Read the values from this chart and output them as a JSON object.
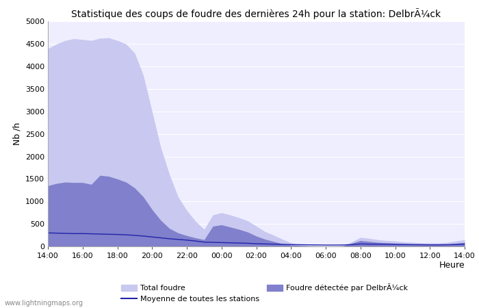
{
  "title": "Statistique des coups de foudre des dernières 24h pour la station: DelbrÃ¼ck",
  "ylabel": "Nb /h",
  "xlabel": "Heure",
  "ylim": [
    0,
    5000
  ],
  "yticks": [
    0,
    500,
    1000,
    1500,
    2000,
    2500,
    3000,
    3500,
    4000,
    4500,
    5000
  ],
  "xtick_labels": [
    "14:00",
    "16:00",
    "18:00",
    "20:00",
    "22:00",
    "00:00",
    "02:00",
    "04:00",
    "06:00",
    "08:00",
    "10:00",
    "12:00",
    "14:00"
  ],
  "color_total": "#c8c8f0",
  "color_station": "#8080cc",
  "color_mean": "#2222aa",
  "background_color": "#eeeeff",
  "grid_color": "#ffffff",
  "watermark": "www.lightningmaps.org",
  "legend_total": "Total foudre",
  "legend_station": "Foudre détectée par DelbrÃ¼ck",
  "legend_mean": "Moyenne de toutes les stations",
  "x": [
    0,
    1,
    2,
    3,
    4,
    5,
    6,
    7,
    8,
    9,
    10,
    11,
    12,
    13,
    14,
    15,
    16,
    17,
    18,
    19,
    20,
    21,
    22,
    23,
    24,
    25,
    26,
    27,
    28,
    29,
    30,
    31,
    32,
    33,
    34,
    35,
    36,
    37,
    38,
    39,
    40,
    41,
    42,
    43,
    44,
    45,
    46,
    47,
    48
  ],
  "total_foudre": [
    4400,
    4500,
    4580,
    4620,
    4600,
    4580,
    4630,
    4640,
    4580,
    4500,
    4300,
    3800,
    3000,
    2200,
    1600,
    1100,
    800,
    560,
    380,
    700,
    750,
    700,
    640,
    570,
    450,
    330,
    250,
    160,
    80,
    40,
    20,
    15,
    10,
    10,
    20,
    100,
    200,
    180,
    150,
    130,
    120,
    100,
    90,
    80,
    80,
    80,
    90,
    120,
    150
  ],
  "station_foudre": [
    1350,
    1400,
    1430,
    1420,
    1420,
    1380,
    1580,
    1560,
    1500,
    1430,
    1300,
    1100,
    820,
    580,
    400,
    300,
    240,
    190,
    150,
    450,
    480,
    430,
    380,
    320,
    230,
    160,
    110,
    60,
    30,
    20,
    10,
    8,
    5,
    5,
    10,
    70,
    130,
    110,
    90,
    80,
    70,
    60,
    50,
    45,
    40,
    40,
    50,
    70,
    90
  ],
  "mean_line": [
    300,
    295,
    290,
    285,
    285,
    280,
    275,
    270,
    265,
    258,
    245,
    230,
    210,
    190,
    170,
    155,
    140,
    120,
    95,
    90,
    85,
    80,
    75,
    70,
    60,
    55,
    50,
    45,
    40,
    38,
    35,
    33,
    30,
    30,
    32,
    40,
    55,
    50,
    50,
    48,
    45,
    42,
    40,
    38,
    35,
    35,
    38,
    42,
    50
  ],
  "title_fontsize": 10,
  "label_fontsize": 9,
  "tick_fontsize": 8,
  "legend_fontsize": 8
}
